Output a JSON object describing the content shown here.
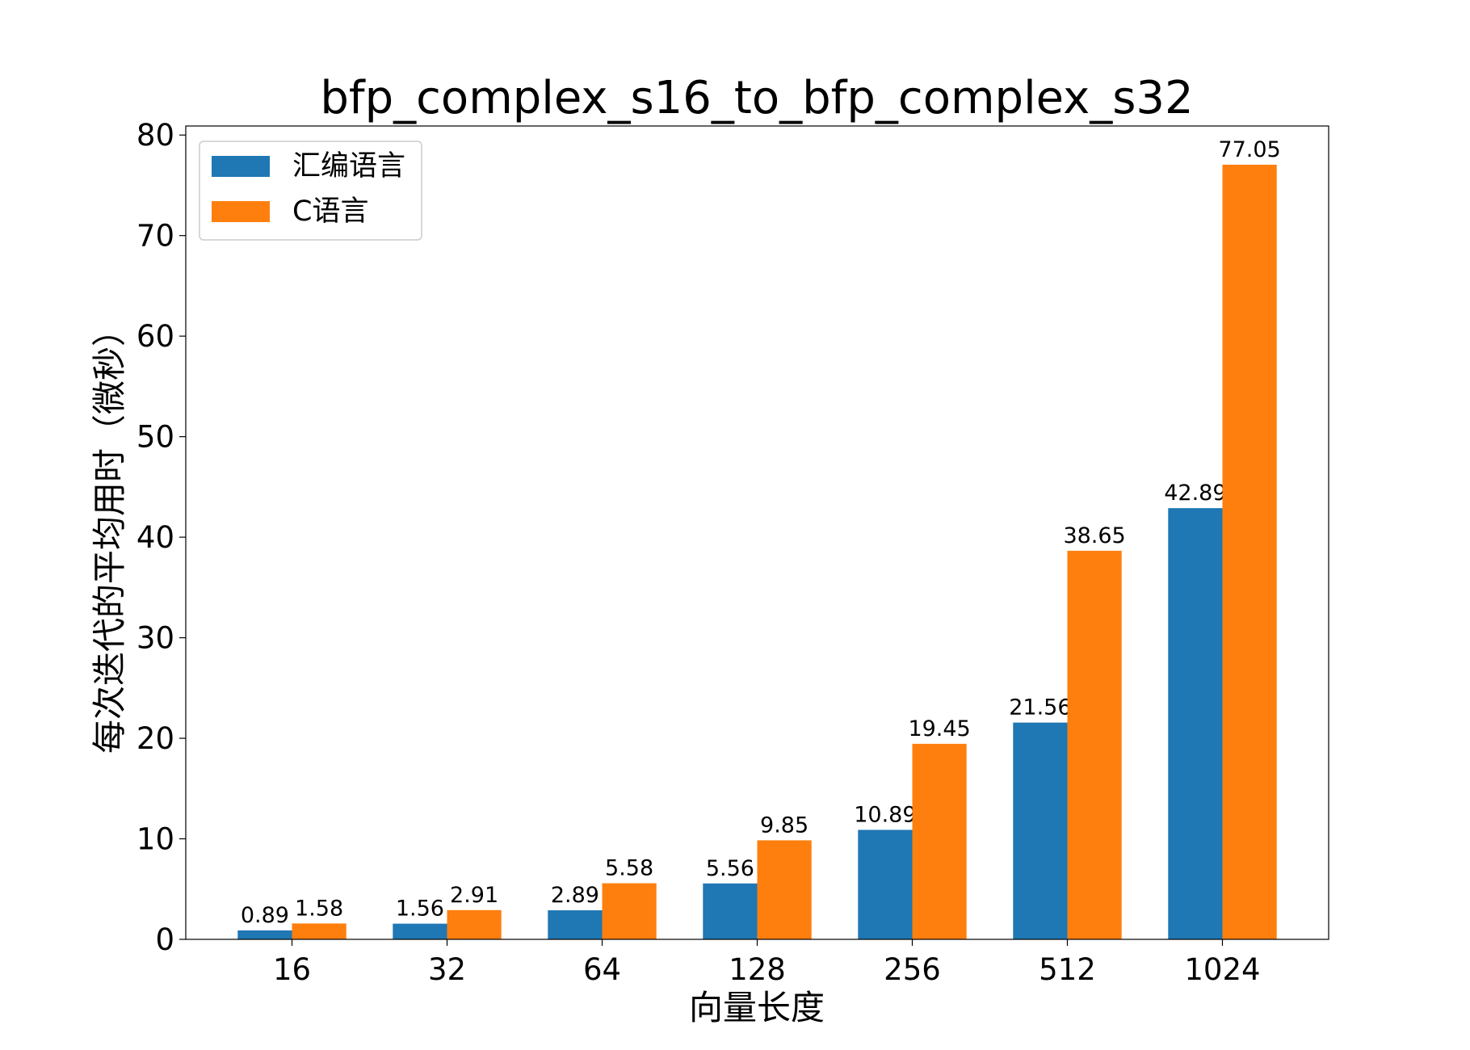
{
  "chart_data": {
    "type": "bar",
    "title": "bfp_complex_s16_to_bfp_complex_s32",
    "xlabel": "向量长度",
    "ylabel": "每次迭代的平均用时（微秒）",
    "categories": [
      "16",
      "32",
      "64",
      "128",
      "256",
      "512",
      "1024"
    ],
    "series": [
      {
        "name": "汇编语言",
        "color": "#1f77b4",
        "values": [
          0.89,
          1.56,
          2.89,
          5.56,
          10.89,
          21.56,
          42.89
        ]
      },
      {
        "name": "C语言",
        "color": "#ff7f0e",
        "values": [
          1.58,
          2.91,
          5.58,
          9.85,
          19.45,
          38.65,
          77.05
        ]
      }
    ],
    "ylim": [
      0,
      80.9
    ],
    "yticks": [
      0,
      10,
      20,
      30,
      40,
      50,
      60,
      70,
      80
    ],
    "grid": false,
    "legend_placement": "top-left",
    "data_labels": true
  }
}
